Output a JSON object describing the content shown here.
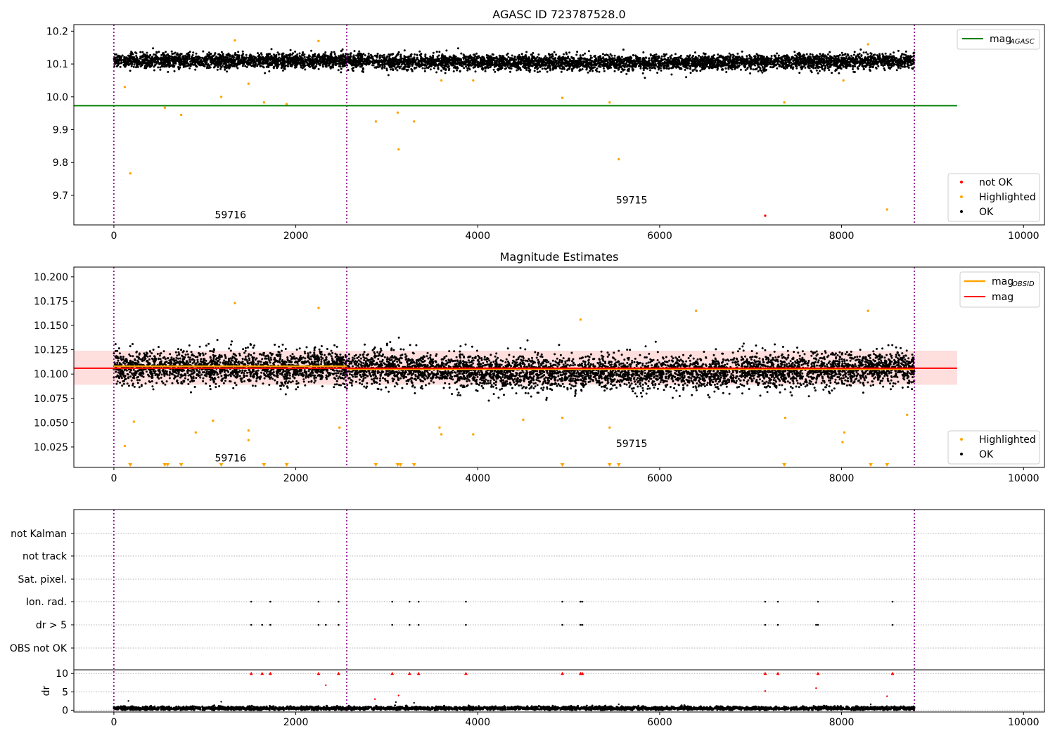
{
  "chart_data": [
    {
      "type": "scatter",
      "title": "AGASC ID 723787528.0",
      "xlim": [
        -440,
        10230
      ],
      "ylim": [
        9.61,
        10.22
      ],
      "x_ticks": [
        "0",
        "2000",
        "4000",
        "6000",
        "8000",
        "10000"
      ],
      "y_ticks": [
        "9.7",
        "9.8",
        "9.9",
        "10.0",
        "10.1",
        "10.2"
      ],
      "obs_boundaries": [
        0,
        2560,
        8800
      ],
      "obsid_annotations": [
        {
          "label": "59716",
          "x": 1110,
          "y": 9.63
        },
        {
          "label": "59715",
          "x": 5520,
          "y": 9.675
        }
      ],
      "lines": [
        {
          "name": "mag_AGASC",
          "legend": "mag",
          "legend_sub": "AGASC",
          "y": 9.973,
          "x_range": [
            -440,
            9270
          ],
          "color": "#008000"
        }
      ],
      "scatter_legend": [
        {
          "label": "not OK",
          "color": "#ff0000"
        },
        {
          "label": "Highlighted",
          "color": "#ffa500"
        },
        {
          "label": "OK",
          "color": "#000000"
        }
      ],
      "series": [
        {
          "name": "OK",
          "color": "#000000",
          "mean": 10.11,
          "spread": 0.022,
          "range": [
            10.05,
            10.16
          ]
        },
        {
          "name": "Highlighted",
          "color": "#ffa500",
          "points": [
            [
              120,
              10.03
            ],
            [
              180,
              9.767
            ],
            [
              560,
              9.967
            ],
            [
              740,
              9.945
            ],
            [
              1180,
              10.0
            ],
            [
              1650,
              9.983
            ],
            [
              1900,
              9.978
            ],
            [
              2880,
              9.925
            ],
            [
              3120,
              9.952
            ],
            [
              3130,
              9.84
            ],
            [
              3300,
              9.925
            ],
            [
              4930,
              9.997
            ],
            [
              5450,
              9.983
            ],
            [
              5550,
              9.81
            ],
            [
              7370,
              9.983
            ],
            [
              8500,
              9.657
            ],
            [
              2250,
              10.17
            ],
            [
              1330,
              10.172
            ],
            [
              1480,
              10.04
            ],
            [
              3600,
              10.05
            ],
            [
              3950,
              10.05
            ],
            [
              8020,
              10.05
            ],
            [
              8290,
              10.16
            ]
          ]
        },
        {
          "name": "not OK",
          "color": "#ff0000",
          "points": [
            [
              7160,
              9.638
            ]
          ]
        }
      ]
    },
    {
      "type": "scatter",
      "title": "Magnitude Estimates",
      "xlim": [
        -440,
        10230
      ],
      "ylim": [
        10.004,
        10.21
      ],
      "x_ticks": [
        "0",
        "2000",
        "4000",
        "6000",
        "8000",
        "10000"
      ],
      "y_ticks": [
        "10.025",
        "10.050",
        "10.075",
        "10.100",
        "10.125",
        "10.150",
        "10.175",
        "10.200"
      ],
      "obs_boundaries": [
        0,
        2560,
        8800
      ],
      "obsid_annotations": [
        {
          "label": "59716",
          "x": 1110,
          "y": 10.01
        },
        {
          "label": "59715",
          "x": 5520,
          "y": 10.025
        }
      ],
      "band": {
        "low": 10.089,
        "high": 10.124,
        "x_range": [
          -440,
          9270
        ]
      },
      "lines": [
        {
          "name": "mag_OBSID",
          "legend": "mag",
          "legend_sub": "OBSID",
          "color": "#ffa500",
          "segments": [
            [
              0,
              2560,
              10.108
            ],
            [
              2560,
              8800,
              10.105
            ]
          ]
        },
        {
          "name": "mag",
          "legend": "mag",
          "legend_sub": "",
          "color": "#ff0000",
          "y": 10.106,
          "x_range": [
            -440,
            9270
          ]
        }
      ],
      "scatter_legend": [
        {
          "label": "Highlighted",
          "color": "#ffa500"
        },
        {
          "label": "OK",
          "color": "#000000"
        }
      ],
      "series": [
        {
          "name": "OK",
          "color": "#000000",
          "mean": 10.107,
          "spread": 0.017,
          "range": [
            10.05,
            10.165
          ]
        },
        {
          "name": "Highlighted",
          "color": "#ffa500",
          "points": [
            [
              120,
              10.026
            ],
            [
              220,
              10.051
            ],
            [
              900,
              10.04
            ],
            [
              1090,
              10.052
            ],
            [
              1330,
              10.173
            ],
            [
              1480,
              10.032
            ],
            [
              1480,
              10.042
            ],
            [
              2250,
              10.168
            ],
            [
              2480,
              10.045
            ],
            [
              3600,
              10.038
            ],
            [
              3580,
              10.045
            ],
            [
              3950,
              10.038
            ],
            [
              4500,
              10.053
            ],
            [
              4930,
              10.055
            ],
            [
              5130,
              10.156
            ],
            [
              5450,
              10.045
            ],
            [
              6400,
              10.165
            ],
            [
              7380,
              10.055
            ],
            [
              8010,
              10.03
            ],
            [
              8030,
              10.04
            ],
            [
              8290,
              10.165
            ],
            [
              8720,
              10.058
            ]
          ]
        },
        {
          "name": "Highlighted (below range)",
          "color": "#ffa500",
          "marker": "triangle-down",
          "x": [
            180,
            560,
            590,
            740,
            1180,
            1650,
            1900,
            2880,
            3120,
            3150,
            3300,
            4930,
            5450,
            5550,
            7370,
            8320,
            8500
          ]
        }
      ]
    },
    {
      "type": "scatter",
      "title": "",
      "xlim": [
        -440,
        10230
      ],
      "x_ticks": [
        "0",
        "2000",
        "4000",
        "6000",
        "8000",
        "10000"
      ],
      "flag_rows": [
        "not Kalman",
        "not track",
        "Sat. pixel.",
        "Ion. rad.",
        "dr > 5",
        "OBS not OK"
      ],
      "obs_boundaries": [
        0,
        2560,
        8800
      ],
      "flags": {
        "Ion. rad.": [
          1510,
          1720,
          2250,
          2470,
          3060,
          3250,
          3350,
          3870,
          4930,
          5130,
          5150,
          7160,
          7300,
          7740,
          8560
        ],
        "dr > 5": [
          1510,
          1630,
          1720,
          2250,
          2330,
          2470,
          3060,
          3250,
          3350,
          3870,
          4930,
          5130,
          5150,
          7160,
          7300,
          7720,
          7740,
          8560
        ]
      },
      "dr_axis": {
        "ylabel": "dr",
        "ylim": [
          -0.5,
          11
        ],
        "y_ticks": [
          "0",
          "5",
          "10"
        ]
      },
      "dr_series": [
        {
          "name": "dr",
          "color": "#000000",
          "mean": 0.5,
          "spread": 0.25
        },
        {
          "name": "dr clipped",
          "color": "#ff0000",
          "marker": "triangle-up",
          "y": 10,
          "x": [
            1510,
            1630,
            1720,
            2250,
            2470,
            3060,
            3250,
            3350,
            3870,
            4930,
            5130,
            5150,
            7160,
            7300,
            7740,
            8560
          ]
        },
        {
          "name": "dr outliers",
          "color": "#ff0000",
          "points": [
            [
              2330,
              6.8
            ],
            [
              2870,
              3.0
            ],
            [
              3130,
              4.0
            ],
            [
              7160,
              5.2
            ],
            [
              7720,
              6.0
            ],
            [
              8500,
              3.8
            ]
          ]
        },
        {
          "name": "dr outliers black",
          "color": "#000000",
          "points": [
            [
              160,
              2.5
            ],
            [
              1180,
              2.3
            ],
            [
              3100,
              2.2
            ],
            [
              3300,
              2.0
            ],
            [
              8320,
              1.6
            ],
            [
              5550,
              1.6
            ]
          ]
        }
      ]
    }
  ]
}
